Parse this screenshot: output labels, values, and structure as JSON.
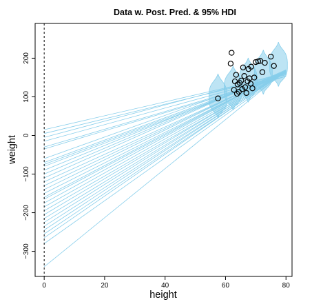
{
  "chart_data": {
    "type": "scatter",
    "title": "Data w. Post. Pred. & 95% HDI",
    "xlabel": "height",
    "ylabel": "weight",
    "xlim": [
      -3,
      82
    ],
    "ylim": [
      -365,
      290
    ],
    "xticks": [
      0,
      20,
      40,
      60,
      80
    ],
    "yticks": [
      -300,
      -200,
      -100,
      0,
      100,
      200
    ],
    "grid": false,
    "reference_line": {
      "x": 0,
      "style": "dashed"
    },
    "colors": {
      "posterior_lines": "#87ceeb",
      "points": "#000000",
      "axes": "#000000"
    },
    "posterior_lines": {
      "description_color_key": "posterior_lines",
      "x_range": [
        0,
        80
      ],
      "lines": [
        {
          "intercept": 15,
          "slope": 1.8
        },
        {
          "intercept": 5,
          "slope": 1.9
        },
        {
          "intercept": -5,
          "slope": 2.1
        },
        {
          "intercept": -15,
          "slope": 2.15
        },
        {
          "intercept": -30,
          "slope": 2.3
        },
        {
          "intercept": -35,
          "slope": 2.35
        },
        {
          "intercept": -60,
          "slope": 2.8
        },
        {
          "intercept": -70,
          "slope": 2.9
        },
        {
          "intercept": -75,
          "slope": 2.95
        },
        {
          "intercept": -80,
          "slope": 3.0
        },
        {
          "intercept": -90,
          "slope": 3.2
        },
        {
          "intercept": -100,
          "slope": 3.35
        },
        {
          "intercept": -110,
          "slope": 3.5
        },
        {
          "intercept": -120,
          "slope": 3.55
        },
        {
          "intercept": -130,
          "slope": 3.7
        },
        {
          "intercept": -140,
          "slope": 3.85
        },
        {
          "intercept": -150,
          "slope": 3.95
        },
        {
          "intercept": -160,
          "slope": 4.1
        },
        {
          "intercept": -165,
          "slope": 4.15
        },
        {
          "intercept": -175,
          "slope": 4.3
        },
        {
          "intercept": -185,
          "slope": 4.4
        },
        {
          "intercept": -195,
          "slope": 4.5
        },
        {
          "intercept": -205,
          "slope": 4.65
        },
        {
          "intercept": -215,
          "slope": 4.75
        },
        {
          "intercept": -225,
          "slope": 4.9
        },
        {
          "intercept": -235,
          "slope": 5.0
        },
        {
          "intercept": -245,
          "slope": 5.15
        },
        {
          "intercept": -255,
          "slope": 5.25
        },
        {
          "intercept": -265,
          "slope": 5.4
        },
        {
          "intercept": -280,
          "slope": 5.55
        },
        {
          "intercept": -340,
          "slope": 6.35
        }
      ]
    },
    "predictive_hdi": {
      "x_values": [
        57.5,
        62.5,
        67.5,
        72.5,
        77.5
      ],
      "center_intercept": -136,
      "center_slope": 4.1,
      "lower_offset": -55,
      "upper_offset": 60
    },
    "points": [
      {
        "x": 57.5,
        "y": 96
      },
      {
        "x": 61.7,
        "y": 186
      },
      {
        "x": 62.0,
        "y": 214
      },
      {
        "x": 62.8,
        "y": 118
      },
      {
        "x": 63.1,
        "y": 140
      },
      {
        "x": 63.5,
        "y": 157
      },
      {
        "x": 63.8,
        "y": 108
      },
      {
        "x": 64.0,
        "y": 132
      },
      {
        "x": 64.4,
        "y": 113
      },
      {
        "x": 64.7,
        "y": 136
      },
      {
        "x": 65.2,
        "y": 142
      },
      {
        "x": 65.5,
        "y": 120
      },
      {
        "x": 65.8,
        "y": 176
      },
      {
        "x": 66.2,
        "y": 154
      },
      {
        "x": 66.5,
        "y": 125
      },
      {
        "x": 66.9,
        "y": 110
      },
      {
        "x": 67.3,
        "y": 140
      },
      {
        "x": 67.6,
        "y": 172
      },
      {
        "x": 67.9,
        "y": 148
      },
      {
        "x": 68.3,
        "y": 134
      },
      {
        "x": 68.5,
        "y": 178
      },
      {
        "x": 68.9,
        "y": 122
      },
      {
        "x": 69.5,
        "y": 150
      },
      {
        "x": 70.0,
        "y": 190
      },
      {
        "x": 70.8,
        "y": 192
      },
      {
        "x": 71.5,
        "y": 193
      },
      {
        "x": 72.2,
        "y": 164
      },
      {
        "x": 73.0,
        "y": 188
      },
      {
        "x": 75.0,
        "y": 204
      },
      {
        "x": 76.0,
        "y": 180
      }
    ]
  }
}
